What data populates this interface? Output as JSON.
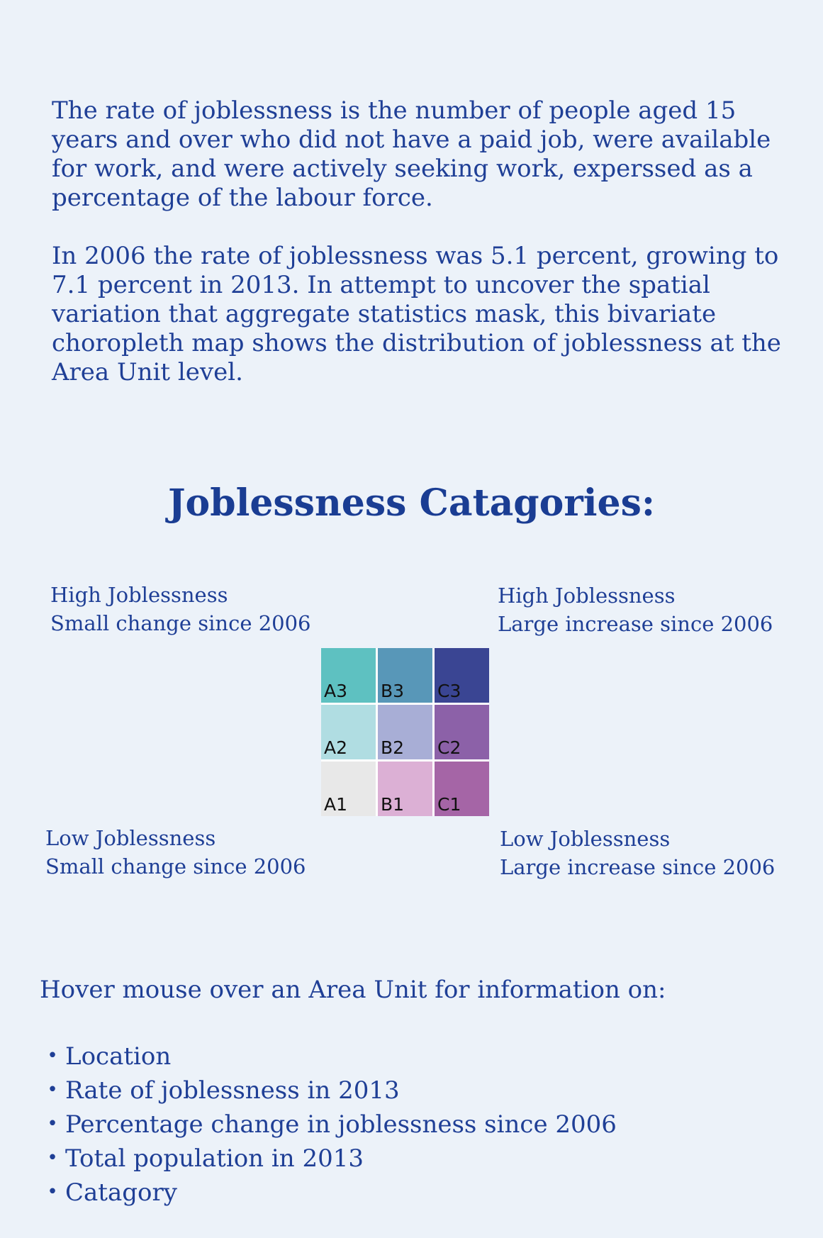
{
  "intro": {
    "paragraph1": "The rate of joblessness is the number of people aged 15 years and over who did not have a paid job, were available for work, and were actively seeking work, experssed as a percentage of the labour force.",
    "paragraph2": "In 2006 the rate of joblessness was 5.1 percent, growing to 7.1 percent in 2013. In attempt to uncover the spatial variation that aggregate statistics mask, this bivariate choropleth map shows the distribution of joblessness at the Area Unit level."
  },
  "legend": {
    "heading": "Joblessness Catagories:",
    "corners": {
      "top_left": {
        "line1": "High Joblessness",
        "line2": "Small change since 2006"
      },
      "top_right": {
        "line1": "High Joblessness",
        "line2": "Large increase since 2006"
      },
      "bottom_left": {
        "line1": "Low Joblessness",
        "line2": "Small change since 2006"
      },
      "bottom_right": {
        "line1": "Low Joblessness",
        "line2": "Large increase since 2006"
      }
    },
    "cells": [
      {
        "label": "A3",
        "color": "#5ec1c1"
      },
      {
        "label": "B3",
        "color": "#5897b8"
      },
      {
        "label": "C3",
        "color": "#3a4593"
      },
      {
        "label": "A2",
        "color": "#b0dde2"
      },
      {
        "label": "B2",
        "color": "#a8aed6"
      },
      {
        "label": "C2",
        "color": "#8c61a8"
      },
      {
        "label": "A1",
        "color": "#e8e8e8"
      },
      {
        "label": "B1",
        "color": "#dcb0d5"
      },
      {
        "label": "C1",
        "color": "#a565a6"
      }
    ]
  },
  "hover": {
    "intro": "Hover mouse over an Area Unit for information on:",
    "bullet": "•",
    "items": [
      "Location",
      "Rate of joblessness in 2013",
      "Percentage change in joblessness since 2006",
      "Total population in 2013",
      "Catagory"
    ]
  }
}
